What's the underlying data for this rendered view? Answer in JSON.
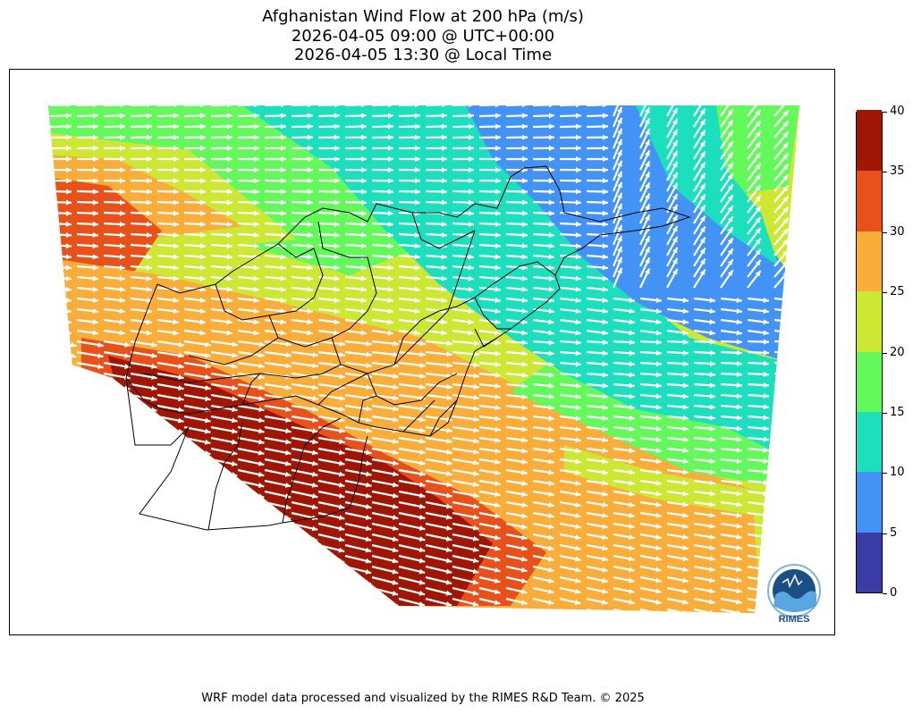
{
  "title": {
    "line1": "Afghanistan Wind Flow at 200 hPa (m/s)",
    "line2": "2026-04-05 09:00 @ UTC+00:00",
    "line3": "2026-04-05 13:30 @ Local Time"
  },
  "colorbar": {
    "levels": [
      0,
      5,
      10,
      15,
      20,
      25,
      30,
      35,
      40
    ],
    "colors": [
      "#3c3ca6",
      "#4393f7",
      "#1cdfbe",
      "#64f95a",
      "#cde833",
      "#fbad3a",
      "#e8511a",
      "#a01604"
    ],
    "labels": [
      "0",
      "5",
      "10",
      "15",
      "20",
      "25",
      "30",
      "35",
      "40"
    ]
  },
  "footer": "WRF model data processed and visualized by the RIMES R&D Team. © 2025",
  "logo": {
    "text": "RIMES",
    "accent_color": "#1a4f86"
  },
  "map": {
    "arrow_color": "#ffffff",
    "border_color": "#000000"
  }
}
